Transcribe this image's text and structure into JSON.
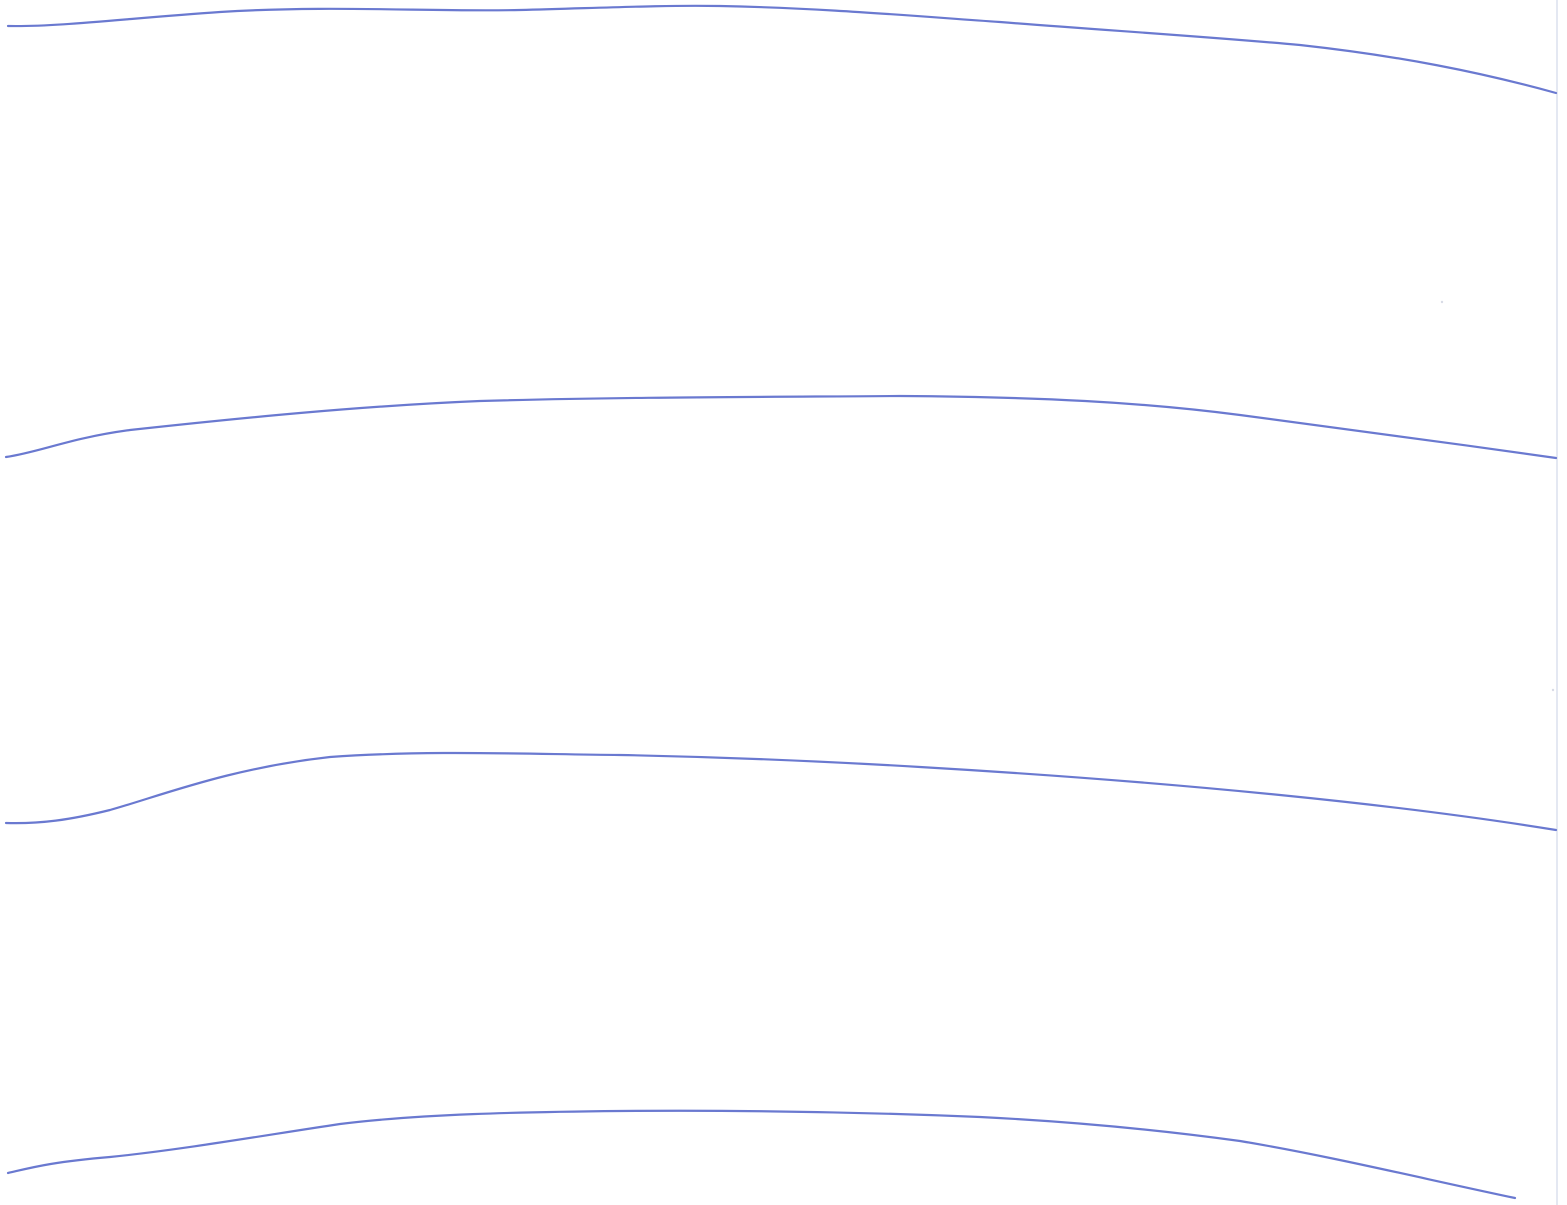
{
  "page": {
    "background": "#ffffff",
    "line_color": "#5a6acb",
    "edge_color": "#e4e8f2"
  },
  "lines": [
    {
      "id": "line-1"
    },
    {
      "id": "line-2"
    },
    {
      "id": "line-3"
    },
    {
      "id": "line-4"
    }
  ]
}
